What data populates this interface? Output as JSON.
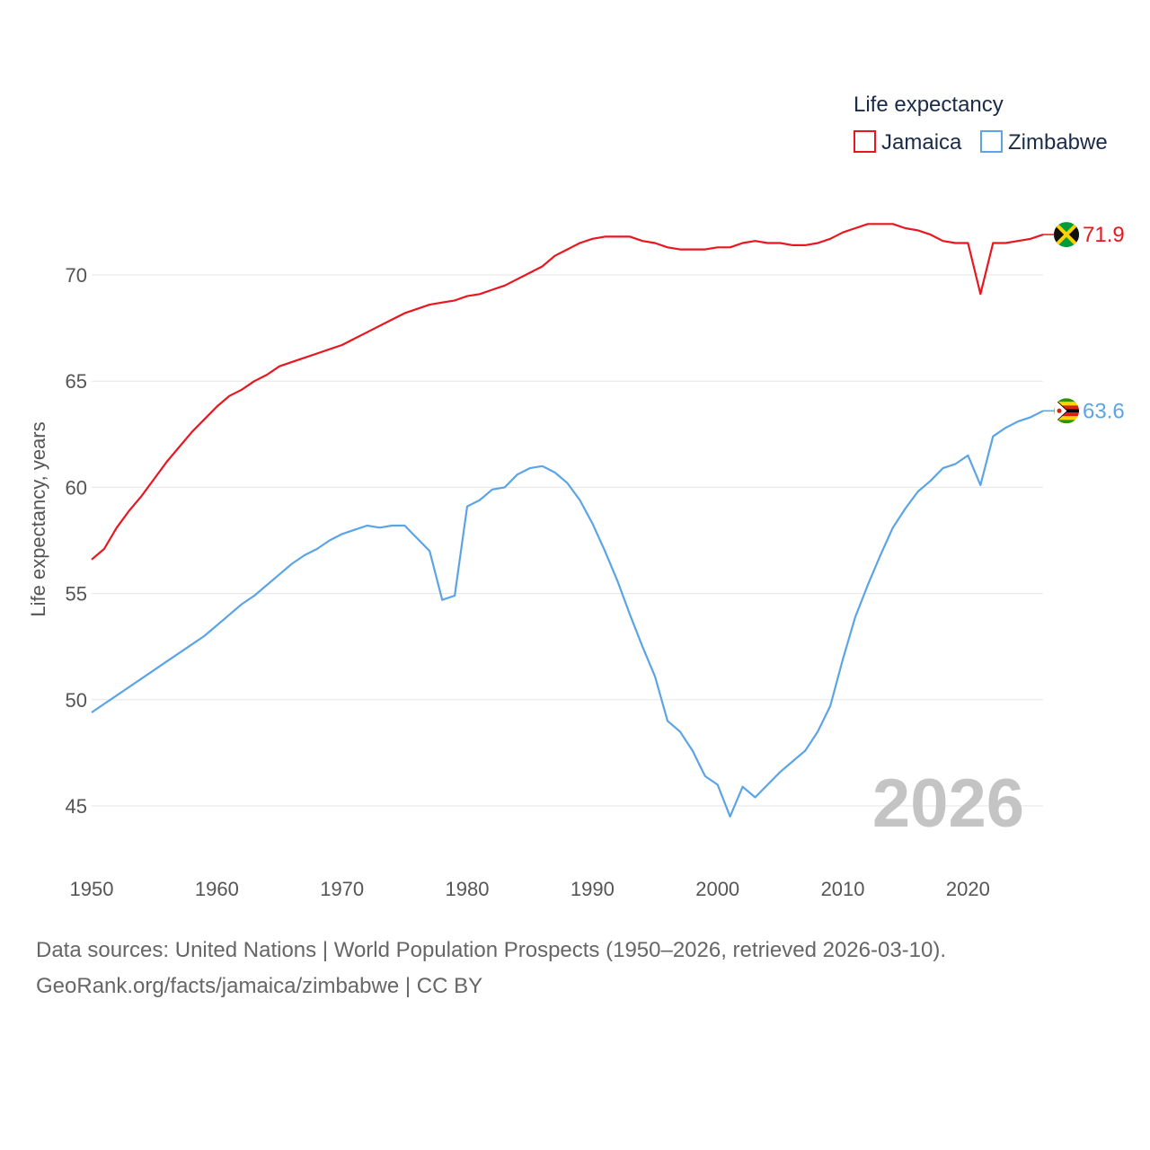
{
  "chart_data": {
    "type": "line",
    "legend_title": "Life expectancy",
    "ylabel": "Life expectancy, years",
    "xlim": [
      1950,
      2026
    ],
    "ylim": [
      44,
      74
    ],
    "x_ticks": [
      1950,
      1960,
      1970,
      1980,
      1990,
      2000,
      2010,
      2020
    ],
    "y_ticks": [
      45,
      50,
      55,
      60,
      65,
      70
    ],
    "current_year": "2026",
    "x": [
      1950,
      1951,
      1952,
      1953,
      1954,
      1955,
      1956,
      1957,
      1958,
      1959,
      1960,
      1961,
      1962,
      1963,
      1964,
      1965,
      1966,
      1967,
      1968,
      1969,
      1970,
      1971,
      1972,
      1973,
      1974,
      1975,
      1976,
      1977,
      1978,
      1979,
      1980,
      1981,
      1982,
      1983,
      1984,
      1985,
      1986,
      1987,
      1988,
      1989,
      1990,
      1991,
      1992,
      1993,
      1994,
      1995,
      1996,
      1997,
      1998,
      1999,
      2000,
      2001,
      2002,
      2003,
      2004,
      2005,
      2006,
      2007,
      2008,
      2009,
      2010,
      2011,
      2012,
      2013,
      2014,
      2015,
      2016,
      2017,
      2018,
      2019,
      2020,
      2021,
      2022,
      2023,
      2024,
      2025,
      2026
    ],
    "series": [
      {
        "name": "Jamaica",
        "color": "#e8171f",
        "flag_icon": "jamaica-flag-icon",
        "end_label": "71.9",
        "values": [
          56.6,
          57.1,
          58.1,
          58.9,
          59.6,
          60.4,
          61.2,
          61.9,
          62.6,
          63.2,
          63.8,
          64.3,
          64.6,
          65.0,
          65.3,
          65.7,
          65.9,
          66.1,
          66.3,
          66.5,
          66.7,
          67.0,
          67.3,
          67.6,
          67.9,
          68.2,
          68.4,
          68.6,
          68.7,
          68.8,
          69.0,
          69.1,
          69.3,
          69.5,
          69.8,
          70.1,
          70.4,
          70.9,
          71.2,
          71.5,
          71.7,
          71.8,
          71.8,
          71.8,
          71.6,
          71.5,
          71.3,
          71.2,
          71.2,
          71.2,
          71.3,
          71.3,
          71.5,
          71.6,
          71.5,
          71.5,
          71.4,
          71.4,
          71.5,
          71.7,
          72.0,
          72.2,
          72.4,
          72.4,
          72.4,
          72.2,
          72.1,
          71.9,
          71.6,
          71.5,
          71.5,
          69.1,
          71.5,
          71.5,
          71.6,
          71.7,
          71.9
        ]
      },
      {
        "name": "Zimbabwe",
        "color": "#5ba4e6",
        "flag_icon": "zimbabwe-flag-icon",
        "end_label": "63.6",
        "values": [
          49.4,
          49.8,
          50.2,
          50.6,
          51.0,
          51.4,
          51.8,
          52.2,
          52.6,
          53.0,
          53.5,
          54.0,
          54.5,
          54.9,
          55.4,
          55.9,
          56.4,
          56.8,
          57.1,
          57.5,
          57.8,
          58.0,
          58.2,
          58.1,
          58.2,
          58.2,
          57.6,
          57.0,
          54.7,
          54.9,
          59.1,
          59.4,
          59.9,
          60.0,
          60.6,
          60.9,
          61.0,
          60.7,
          60.2,
          59.4,
          58.3,
          57.0,
          55.6,
          54.0,
          52.5,
          51.1,
          49.0,
          48.5,
          47.6,
          46.4,
          46.0,
          44.5,
          45.9,
          45.4,
          46.0,
          46.6,
          47.1,
          47.6,
          48.5,
          49.7,
          51.9,
          53.9,
          55.4,
          56.8,
          58.1,
          59.0,
          59.8,
          60.3,
          60.9,
          61.1,
          61.5,
          60.1,
          62.4,
          62.8,
          63.1,
          63.3,
          63.6
        ]
      }
    ]
  },
  "footer": {
    "source_line1": "Data sources: United Nations | World Population Prospects (1950–2026, retrieved 2026-03-10).",
    "source_line2": "GeoRank.org/facts/jamaica/zimbabwe | CC BY"
  }
}
